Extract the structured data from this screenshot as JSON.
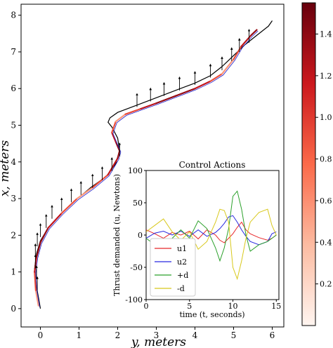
{
  "chart_data": [
    {
      "type": "line",
      "xlabel": "y, meters",
      "ylabel": "x, meters",
      "xlim": [
        -0.5,
        6.3
      ],
      "ylim": [
        -0.5,
        8.3
      ],
      "xticks": [
        0,
        1,
        2,
        3,
        4,
        5,
        6
      ],
      "yticks": [
        0,
        1,
        2,
        3,
        4,
        5,
        6,
        7,
        8
      ],
      "reference_path": [
        [
          0.0,
          0.0
        ],
        [
          -0.05,
          0.3
        ],
        [
          -0.12,
          0.7
        ],
        [
          -0.15,
          1.1
        ],
        [
          -0.1,
          1.5
        ],
        [
          0.0,
          1.85
        ],
        [
          0.2,
          2.2
        ],
        [
          0.5,
          2.55
        ],
        [
          0.9,
          2.95
        ],
        [
          1.3,
          3.3
        ],
        [
          1.7,
          3.6
        ],
        [
          1.95,
          3.95
        ],
        [
          2.05,
          4.3
        ],
        [
          2.0,
          4.65
        ],
        [
          1.85,
          4.95
        ],
        [
          1.75,
          5.08
        ],
        [
          1.8,
          5.2
        ],
        [
          2.0,
          5.35
        ],
        [
          2.5,
          5.55
        ],
        [
          3.0,
          5.75
        ],
        [
          3.5,
          5.95
        ],
        [
          4.0,
          6.15
        ],
        [
          4.4,
          6.35
        ],
        [
          4.7,
          6.6
        ],
        [
          5.0,
          6.9
        ],
        [
          5.3,
          7.2
        ],
        [
          5.6,
          7.45
        ],
        [
          5.9,
          7.7
        ],
        [
          6.0,
          7.85
        ]
      ],
      "vehicle_path": [
        [
          -0.05,
          0.08
        ],
        [
          -0.12,
          0.5
        ],
        [
          -0.15,
          1.0
        ],
        [
          -0.1,
          1.4
        ],
        [
          0.0,
          1.8
        ],
        [
          0.2,
          2.2
        ],
        [
          0.55,
          2.6
        ],
        [
          0.95,
          3.0
        ],
        [
          1.35,
          3.3
        ],
        [
          1.75,
          3.65
        ],
        [
          2.0,
          4.1
        ],
        [
          2.05,
          4.3
        ],
        [
          1.95,
          4.55
        ],
        [
          1.85,
          4.8
        ],
        [
          1.95,
          5.1
        ],
        [
          2.2,
          5.3
        ],
        [
          2.6,
          5.45
        ],
        [
          3.0,
          5.6
        ],
        [
          3.5,
          5.8
        ],
        [
          4.0,
          6.0
        ],
        [
          4.4,
          6.2
        ],
        [
          4.7,
          6.4
        ],
        [
          5.0,
          6.8
        ],
        [
          5.2,
          7.15
        ],
        [
          5.45,
          7.45
        ],
        [
          5.6,
          7.6
        ]
      ],
      "thrust_arrows": [
        [
          -0.08,
          0.5
        ],
        [
          -0.1,
          0.8
        ],
        [
          -0.13,
          1.1
        ],
        [
          -0.13,
          1.4
        ],
        [
          -0.08,
          1.7
        ],
        [
          0.0,
          1.95
        ],
        [
          0.15,
          2.2
        ],
        [
          0.3,
          2.45
        ],
        [
          0.55,
          2.65
        ],
        [
          0.8,
          2.9
        ],
        [
          1.05,
          3.1
        ],
        [
          1.35,
          3.3
        ],
        [
          1.6,
          3.5
        ],
        [
          1.85,
          3.75
        ],
        [
          2.05,
          4.15
        ],
        [
          2.5,
          5.5
        ],
        [
          2.85,
          5.65
        ],
        [
          3.2,
          5.8
        ],
        [
          3.6,
          5.95
        ],
        [
          4.0,
          6.1
        ],
        [
          4.4,
          6.3
        ],
        [
          4.7,
          6.5
        ],
        [
          4.95,
          6.75
        ],
        [
          5.15,
          7.0
        ],
        [
          5.4,
          7.25
        ]
      ],
      "colorbar": {
        "ticks": [
          0.2,
          0.4,
          0.6,
          0.8,
          1.0,
          1.2,
          1.4
        ],
        "range": [
          0.0,
          1.55
        ],
        "colormap": "Reds"
      },
      "colors": {
        "reference": "#000000",
        "path_low": "#fee0d2",
        "path_high": "#67000d",
        "arrow": "#000000",
        "thrust": "#2020cc"
      }
    },
    {
      "type": "line",
      "title": "Control Actions",
      "xlabel": "time (t, seconds)",
      "ylabel": "Thrust demanded (u, Newtons)",
      "xlim": [
        0,
        15.3
      ],
      "ylim": [
        -100,
        100
      ],
      "xticks": [
        0,
        5,
        10,
        15
      ],
      "yticks": [
        -100,
        -50,
        0,
        50,
        100
      ],
      "legend": "lower-left",
      "series": [
        {
          "name": "u1",
          "color": "#e8282b",
          "x": [
            0,
            1,
            2,
            3,
            4,
            5,
            6,
            7,
            8,
            8.5,
            9,
            9.5,
            10,
            10.5,
            11,
            11.5,
            12,
            13,
            14,
            14.5,
            15
          ],
          "y": [
            8,
            2,
            -5,
            4,
            0,
            6,
            -6,
            8,
            0,
            -8,
            -12,
            -5,
            2,
            12,
            20,
            8,
            2,
            -4,
            -8,
            -5,
            0
          ]
        },
        {
          "name": "u2",
          "color": "#2828e0",
          "x": [
            0,
            1,
            2,
            3,
            4,
            5,
            6,
            7,
            8,
            8.5,
            9,
            9.5,
            10,
            10.5,
            11,
            11.5,
            12,
            13,
            14,
            14.5,
            15
          ],
          "y": [
            -5,
            3,
            6,
            0,
            6,
            -2,
            8,
            -2,
            4,
            10,
            18,
            28,
            30,
            20,
            8,
            -2,
            -10,
            -15,
            -10,
            2,
            5
          ]
        },
        {
          "name": "+d",
          "color": "#2aa02a",
          "x": [
            0,
            1,
            2,
            3,
            4,
            5,
            6,
            7,
            8,
            8.5,
            9,
            9.5,
            10,
            10.5,
            11,
            11.5,
            12,
            13,
            14,
            14.5,
            15
          ],
          "y": [
            -5,
            -15,
            -25,
            -5,
            8,
            -5,
            22,
            10,
            -20,
            -40,
            -20,
            10,
            60,
            68,
            40,
            0,
            -25,
            -15,
            -10,
            -5,
            0
          ]
        },
        {
          "name": "-d",
          "color": "#d8c81a",
          "x": [
            0,
            1,
            2,
            3,
            4,
            5,
            6,
            7,
            8,
            8.5,
            9,
            9.5,
            10,
            10.5,
            11,
            11.5,
            12,
            13,
            14,
            14.5,
            15
          ],
          "y": [
            5,
            15,
            25,
            5,
            -8,
            5,
            -22,
            -10,
            20,
            40,
            38,
            20,
            -50,
            -68,
            -40,
            -5,
            20,
            35,
            40,
            15,
            0
          ]
        }
      ]
    }
  ]
}
